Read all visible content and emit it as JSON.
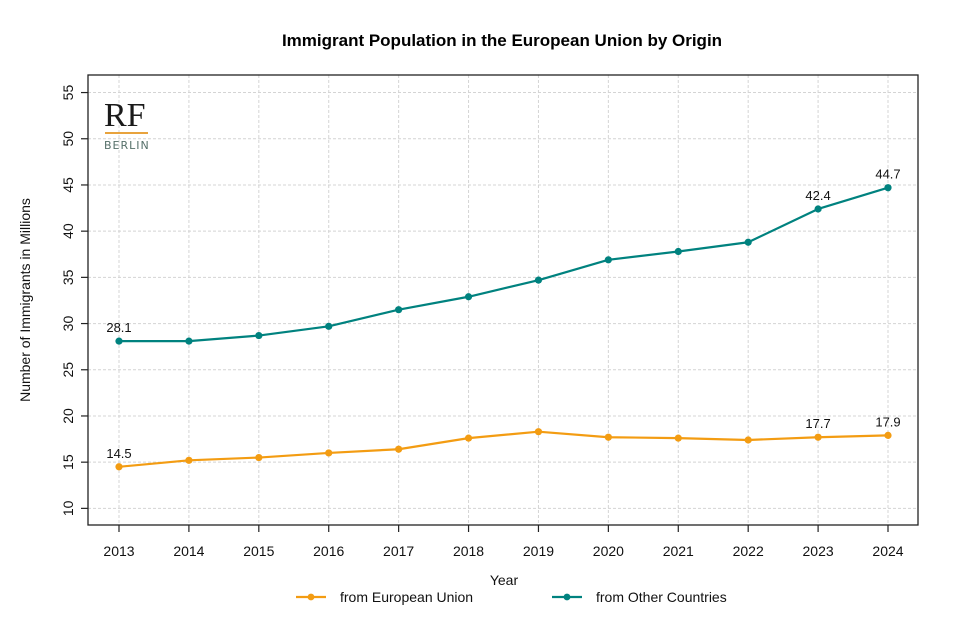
{
  "chart_data": {
    "type": "line",
    "title": "Immigrant Population in the European Union by Origin",
    "xlabel": "Year",
    "ylabel": "Number of Immigrants in Millions",
    "x": [
      2013,
      2014,
      2015,
      2016,
      2017,
      2018,
      2019,
      2020,
      2021,
      2022,
      2023,
      2024
    ],
    "x_tick_labels": [
      "2013",
      "2014",
      "2015",
      "2016",
      "2017",
      "2018",
      "2019",
      "2020",
      "2021",
      "2022",
      "2023",
      "2024"
    ],
    "ylim": [
      8.2,
      56.9
    ],
    "y_ticks": [
      10,
      15,
      20,
      25,
      30,
      35,
      40,
      45,
      50,
      55
    ],
    "y_tick_labels": [
      "10",
      "15",
      "20",
      "25",
      "30",
      "35",
      "40",
      "45",
      "50",
      "55"
    ],
    "grid": true,
    "legend_position": "bottom",
    "series": [
      {
        "name": "from European Union",
        "color": "#F39C12",
        "values": [
          14.5,
          15.2,
          15.5,
          16.0,
          16.4,
          17.6,
          18.3,
          17.7,
          17.6,
          17.4,
          17.7,
          17.9
        ],
        "labels": [
          {
            "x": 2013,
            "text": "14.5"
          },
          {
            "x": 2023,
            "text": "17.7"
          },
          {
            "x": 2024,
            "text": "17.9"
          }
        ]
      },
      {
        "name": "from Other Countries",
        "color": "#00827F",
        "values": [
          28.1,
          28.1,
          28.7,
          29.7,
          31.5,
          32.9,
          34.7,
          36.9,
          37.8,
          38.8,
          42.4,
          44.7
        ],
        "labels": [
          {
            "x": 2013,
            "text": "28.1"
          },
          {
            "x": 2023,
            "text": "42.4"
          },
          {
            "x": 2024,
            "text": "44.7"
          }
        ]
      }
    ]
  },
  "logo": {
    "name": "RF",
    "subtitle": "BERLIN",
    "accent_color": "#E8A33D"
  }
}
